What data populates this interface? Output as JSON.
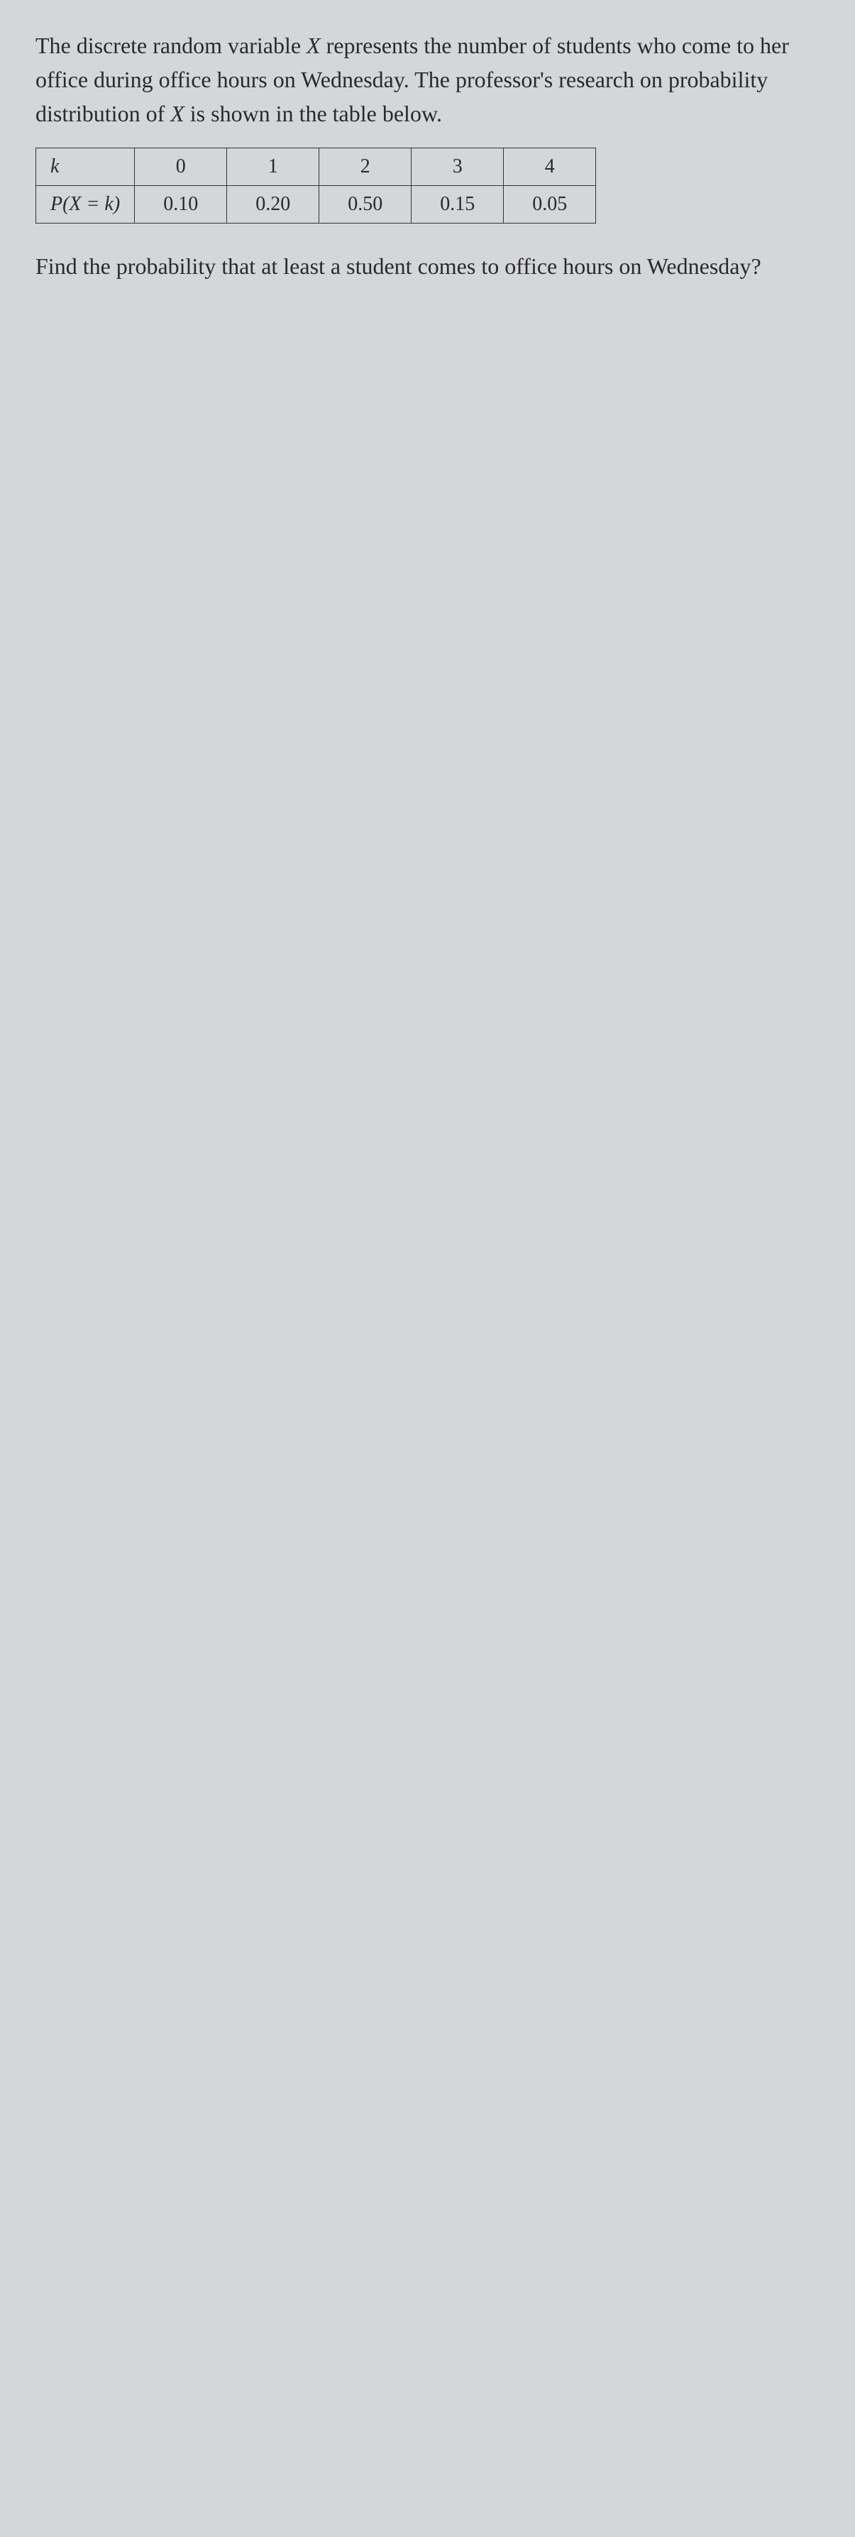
{
  "intro": {
    "part1": "The discrete random variable ",
    "var1": "X",
    "part2": " represents the number of students who come to her office during office hours on Wednesday. The professor's research on probability distribution of ",
    "var2": "X",
    "part3": " is shown in the table below."
  },
  "table": {
    "rowHeader1": "k",
    "rowHeader2": "P(X = k)",
    "k": [
      "0",
      "1",
      "2",
      "3",
      "4"
    ],
    "p": [
      "0.10",
      "0.20",
      "0.50",
      "0.15",
      "0.05"
    ]
  },
  "question": "Find the probability that at least a student comes to office hours on Wednesday?",
  "styling": {
    "background_color": "#d4d6d9",
    "text_color": "#2a2a2a",
    "border_color": "#333333",
    "body_fontsize": 32,
    "table_fontsize": 28
  }
}
